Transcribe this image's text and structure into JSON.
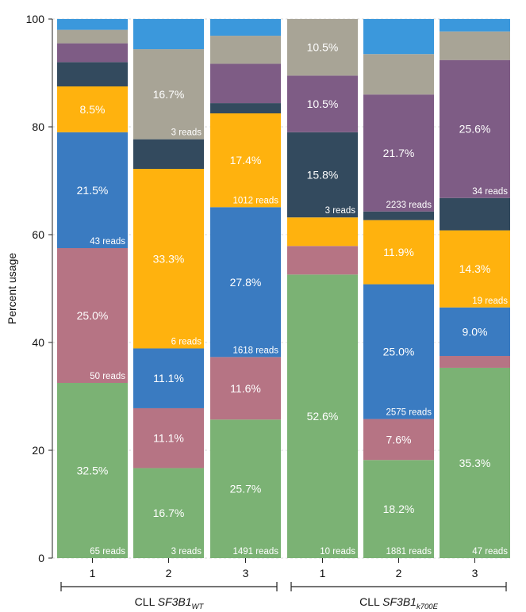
{
  "chart_data": {
    "type": "bar",
    "stacked": true,
    "ylabel": "Percent usage",
    "ylim": [
      0,
      100
    ],
    "yticks": [
      0,
      20,
      40,
      60,
      80,
      100
    ],
    "grid": true,
    "colors": {
      "green": "#7bb274",
      "pink": "#b67484",
      "blue": "#3a7bc1",
      "orange": "#ffb20e",
      "navy": "#334a5e",
      "purple": "#7e5c85",
      "gray": "#a8a496",
      "lightblue": "#3b98dc"
    },
    "stack_order": [
      "green",
      "pink",
      "blue",
      "orange",
      "navy",
      "purple",
      "gray",
      "lightblue"
    ],
    "groups": [
      {
        "label_prefix": "CLL ",
        "label_main": "SF3B1",
        "label_sub": "WT",
        "bars": [
          0,
          1,
          2
        ]
      },
      {
        "label_prefix": "CLL ",
        "label_main": "SF3B1",
        "label_sub": "k700E",
        "bars": [
          3,
          4,
          5
        ]
      }
    ],
    "bars": [
      {
        "category": "1",
        "segments": [
          {
            "color": "green",
            "value": 32.5,
            "label": "32.5%",
            "reads": "65 reads"
          },
          {
            "color": "pink",
            "value": 25.0,
            "label": "25.0%",
            "reads": "50 reads"
          },
          {
            "color": "blue",
            "value": 21.5,
            "label": "21.5%",
            "reads": "43 reads"
          },
          {
            "color": "orange",
            "value": 8.5,
            "label": "8.5%",
            "reads": ""
          },
          {
            "color": "navy",
            "value": 4.5,
            "label": "",
            "reads": ""
          },
          {
            "color": "purple",
            "value": 3.5,
            "label": "",
            "reads": ""
          },
          {
            "color": "gray",
            "value": 2.5,
            "label": "",
            "reads": ""
          },
          {
            "color": "lightblue",
            "value": 2.0,
            "label": "",
            "reads": ""
          }
        ]
      },
      {
        "category": "2",
        "segments": [
          {
            "color": "green",
            "value": 16.7,
            "label": "16.7%",
            "reads": "3 reads"
          },
          {
            "color": "pink",
            "value": 11.1,
            "label": "11.1%",
            "reads": ""
          },
          {
            "color": "blue",
            "value": 11.1,
            "label": "11.1%",
            "reads": ""
          },
          {
            "color": "orange",
            "value": 33.3,
            "label": "33.3%",
            "reads": "6 reads"
          },
          {
            "color": "navy",
            "value": 5.5,
            "label": "",
            "reads": ""
          },
          {
            "color": "purple",
            "value": 0,
            "label": "",
            "reads": ""
          },
          {
            "color": "gray",
            "value": 16.7,
            "label": "16.7%",
            "reads": "3 reads"
          },
          {
            "color": "lightblue",
            "value": 5.6,
            "label": "",
            "reads": ""
          }
        ]
      },
      {
        "category": "3",
        "segments": [
          {
            "color": "green",
            "value": 25.7,
            "label": "25.7%",
            "reads": "1491 reads"
          },
          {
            "color": "pink",
            "value": 11.6,
            "label": "11.6%",
            "reads": ""
          },
          {
            "color": "blue",
            "value": 27.8,
            "label": "27.8%",
            "reads": "1618 reads"
          },
          {
            "color": "orange",
            "value": 17.4,
            "label": "17.4%",
            "reads": "1012 reads"
          },
          {
            "color": "navy",
            "value": 1.9,
            "label": "",
            "reads": ""
          },
          {
            "color": "purple",
            "value": 7.3,
            "label": "",
            "reads": ""
          },
          {
            "color": "gray",
            "value": 5.2,
            "label": "",
            "reads": ""
          },
          {
            "color": "lightblue",
            "value": 3.1,
            "label": "",
            "reads": ""
          }
        ]
      },
      {
        "category": "1",
        "segments": [
          {
            "color": "green",
            "value": 52.6,
            "label": "52.6%",
            "reads": "10 reads"
          },
          {
            "color": "pink",
            "value": 5.3,
            "label": "",
            "reads": ""
          },
          {
            "color": "blue",
            "value": 0,
            "label": "",
            "reads": ""
          },
          {
            "color": "orange",
            "value": 5.3,
            "label": "",
            "reads": ""
          },
          {
            "color": "navy",
            "value": 15.8,
            "label": "15.8%",
            "reads": "3 reads"
          },
          {
            "color": "purple",
            "value": 10.5,
            "label": "10.5%",
            "reads": ""
          },
          {
            "color": "gray",
            "value": 10.5,
            "label": "10.5%",
            "reads": ""
          },
          {
            "color": "lightblue",
            "value": 0,
            "label": "",
            "reads": ""
          }
        ]
      },
      {
        "category": "2",
        "segments": [
          {
            "color": "green",
            "value": 18.2,
            "label": "18.2%",
            "reads": "1881 reads"
          },
          {
            "color": "pink",
            "value": 7.6,
            "label": "7.6%",
            "reads": ""
          },
          {
            "color": "blue",
            "value": 25.0,
            "label": "25.0%",
            "reads": "2575 reads"
          },
          {
            "color": "orange",
            "value": 11.9,
            "label": "11.9%",
            "reads": ""
          },
          {
            "color": "navy",
            "value": 1.6,
            "label": "",
            "reads": ""
          },
          {
            "color": "purple",
            "value": 21.7,
            "label": "21.7%",
            "reads": "2233 reads"
          },
          {
            "color": "gray",
            "value": 7.5,
            "label": "",
            "reads": ""
          },
          {
            "color": "lightblue",
            "value": 6.5,
            "label": "",
            "reads": ""
          }
        ]
      },
      {
        "category": "3",
        "segments": [
          {
            "color": "green",
            "value": 35.3,
            "label": "35.3%",
            "reads": "47 reads"
          },
          {
            "color": "pink",
            "value": 2.2,
            "label": "",
            "reads": ""
          },
          {
            "color": "blue",
            "value": 9.0,
            "label": "9.0%",
            "reads": ""
          },
          {
            "color": "orange",
            "value": 14.3,
            "label": "14.3%",
            "reads": "19 reads"
          },
          {
            "color": "navy",
            "value": 6.0,
            "label": "",
            "reads": ""
          },
          {
            "color": "purple",
            "value": 25.6,
            "label": "25.6%",
            "reads": "34 reads"
          },
          {
            "color": "gray",
            "value": 5.3,
            "label": "",
            "reads": ""
          },
          {
            "color": "lightblue",
            "value": 2.3,
            "label": "",
            "reads": ""
          }
        ]
      }
    ]
  }
}
